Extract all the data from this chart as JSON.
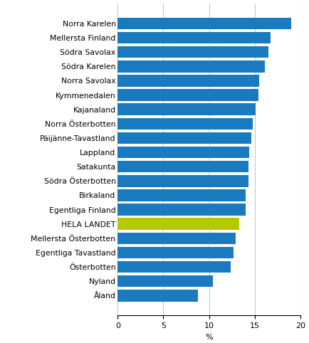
{
  "categories": [
    "Norra Karelen",
    "Mellersta Finland",
    "Södra Savolax",
    "Södra Karelen",
    "Norra Savolax",
    "Kymmenedalen",
    "Kajanaland",
    "Norra Österbotten",
    "Päijänne-Tavastland",
    "Lappland",
    "Satakunta",
    "Södra Österbotten",
    "Birkaland",
    "Egentliga Finland",
    "HELA LANDET",
    "Mellersta Österbotten",
    "Egentliga Tavastland",
    "Österbotten",
    "Nyland",
    "Åland"
  ],
  "values": [
    19.0,
    16.7,
    16.5,
    16.1,
    15.5,
    15.4,
    15.1,
    14.8,
    14.6,
    14.4,
    14.3,
    14.3,
    14.0,
    14.0,
    13.3,
    12.9,
    12.7,
    12.4,
    10.4,
    8.8
  ],
  "bar_colors": [
    "#1a7abf",
    "#1a7abf",
    "#1a7abf",
    "#1a7abf",
    "#1a7abf",
    "#1a7abf",
    "#1a7abf",
    "#1a7abf",
    "#1a7abf",
    "#1a7abf",
    "#1a7abf",
    "#1a7abf",
    "#1a7abf",
    "#1a7abf",
    "#b5c900",
    "#1a7abf",
    "#1a7abf",
    "#1a7abf",
    "#1a7abf",
    "#1a7abf"
  ],
  "xlabel": "%",
  "xlim": [
    0,
    20
  ],
  "xticks": [
    0,
    5,
    10,
    15,
    20
  ],
  "grid_color": "#c8c8c8",
  "background_color": "#ffffff",
  "bar_height": 0.82,
  "label_fontsize": 7.8,
  "tick_fontsize": 8.0
}
